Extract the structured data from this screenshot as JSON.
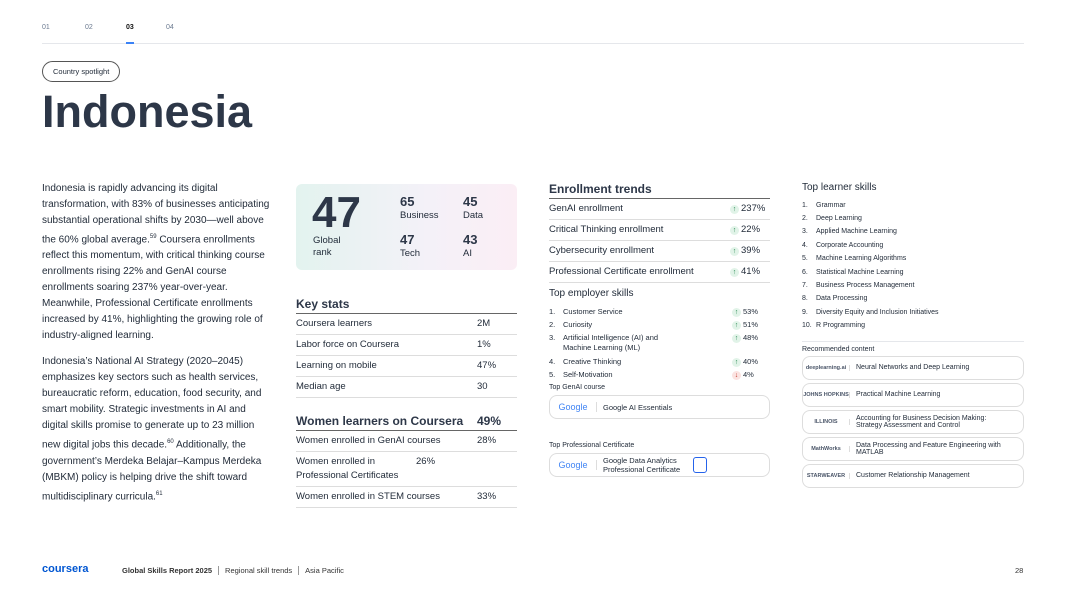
{
  "nav": {
    "items": [
      "01",
      "02",
      "03",
      "04"
    ],
    "active": 2
  },
  "tag": "Country spotlight",
  "title": "Indonesia",
  "body": [
    [
      {
        "text": "Indonesia is rapidly advancing its digital transformation, with 83% of businesses anticipating substantial operational shifts by 2030—well above the 60% global average.",
        "sup": "59"
      },
      {
        "text": " Coursera enrollments reflect this momentum, with critical thinking course enrollments rising 22% and GenAI course enrollments soaring 237% year-over-year. Meanwhile, Professional Certificate enrollments increased by 41%, highlighting the growing role of industry-aligned learning."
      }
    ],
    [
      {
        "text": "Indonesia’s National AI Strategy (2020–2045) emphasizes key sectors such as health services, bureaucratic reform, education, food security, and smart mobility. Strategic investments in AI and digital skills promise to generate up to 23 million new digital jobs this decade.",
        "sup": "60"
      },
      {
        "text": " Additionally, the government’s Merdeka Belajar–Kampus Merdeka (MBKM) policy is helping drive the shift toward multidisciplinary curricula.",
        "sup": "61"
      }
    ]
  ],
  "rank": {
    "value": "47",
    "label": "Global rank",
    "items": [
      {
        "value": "65",
        "label": "Business"
      },
      {
        "value": "45",
        "label": "Data"
      },
      {
        "value": "47",
        "label": "Tech"
      },
      {
        "value": "43",
        "label": "AI"
      }
    ]
  },
  "key_stats": {
    "title": "Key stats",
    "rows": [
      [
        "Coursera learners",
        "2M"
      ],
      [
        "Labor force on Coursera",
        "1%"
      ],
      [
        "Learning on mobile",
        "47%"
      ],
      [
        "Median age",
        "30"
      ]
    ]
  },
  "women": {
    "title": "Women learners on Coursera",
    "value": "49%",
    "rows": [
      [
        "Women enrolled in GenAI courses",
        "28%"
      ],
      [
        "Women enrolled in Professional Certificates",
        "26%"
      ],
      [
        "Women enrolled in STEM courses",
        "33%"
      ]
    ]
  },
  "enrollment": {
    "title": "Enrollment trends",
    "rows": [
      {
        "label": "GenAI enrollment",
        "value": "237%",
        "direction": "up"
      },
      {
        "label": "Critical Thinking enrollment",
        "value": "22%",
        "direction": "up"
      },
      {
        "label": "Cybersecurity enrollment",
        "value": "39%",
        "direction": "up"
      },
      {
        "label": "Professional Certificate enrollment",
        "value": "41%",
        "direction": "up"
      }
    ]
  },
  "employer_skills": {
    "title": "Top employer skills",
    "rows": [
      {
        "num": "1.",
        "label": "Customer Service",
        "value": "53%",
        "direction": "up"
      },
      {
        "num": "2.",
        "label": "Curiosity",
        "value": "51%",
        "direction": "up"
      },
      {
        "num": "3.",
        "label": "Artificial Intelligence (AI) and Machine Learning (ML)",
        "value": "48%",
        "direction": "up"
      },
      {
        "num": "4.",
        "label": "Creative Thinking",
        "value": "40%",
        "direction": "up"
      },
      {
        "num": "5.",
        "label": "Self-Motivation",
        "value": "4%",
        "direction": "down"
      }
    ]
  },
  "genai_course": {
    "title": "Top GenAI course",
    "logo": "Google",
    "name": "Google AI Essentials"
  },
  "prof_cert": {
    "title": "Top Professional Certificate",
    "logo": "Google",
    "name": "Google Data Analytics Professional Certificate"
  },
  "learner_skills": {
    "title": "Top learner skills",
    "rows": [
      {
        "num": "1.",
        "label": "Grammar"
      },
      {
        "num": "2.",
        "label": "Deep Learning"
      },
      {
        "num": "3.",
        "label": "Applied Machine Learning"
      },
      {
        "num": "4.",
        "label": "Corporate Accounting"
      },
      {
        "num": "5.",
        "label": "Machine Learning Algorithms"
      },
      {
        "num": "6.",
        "label": "Statistical Machine Learning"
      },
      {
        "num": "7.",
        "label": "Business Process Management"
      },
      {
        "num": "8.",
        "label": "Data Processing"
      },
      {
        "num": "9.",
        "label": "Diversity Equity and Inclusion Initiatives"
      },
      {
        "num": "10.",
        "label": "R Programming"
      }
    ]
  },
  "recommended": {
    "title": "Recommended content",
    "items": [
      {
        "logo": "deeplearning.ai",
        "name": "Neural Networks and Deep Learning"
      },
      {
        "logo": "JOHNS HOPKINS",
        "name": "Practical Machine Learning"
      },
      {
        "logo": "ILLINOIS",
        "name": "Accounting for Business Decision Making: Strategy Assessment and Control"
      },
      {
        "logo": "MathWorks",
        "name": "Data Processing and Feature Engineering with MATLAB"
      },
      {
        "logo": "STARWEAVER",
        "name": "Customer Relationship Management"
      }
    ]
  },
  "footer": {
    "brand": "coursera",
    "report": "Global Skills Report 2025",
    "section": "Regional skill trends",
    "region": "Asia Pacific",
    "page": "28"
  }
}
